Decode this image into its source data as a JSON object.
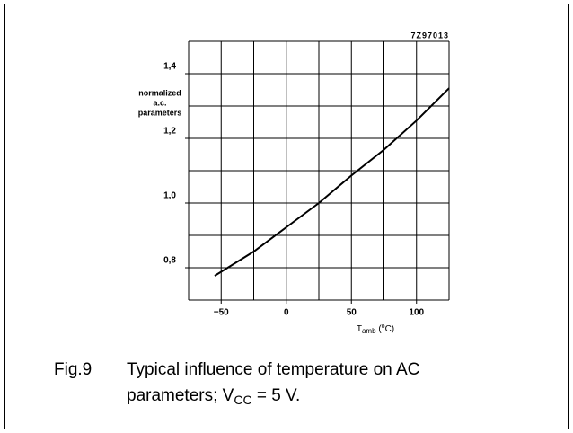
{
  "chart_data": {
    "type": "line",
    "code": "7Z97013",
    "ylabel_lines": [
      "normalized",
      "a.c.",
      "parameters"
    ],
    "xlabel": {
      "main": "T",
      "sub": "amb",
      "open": " (",
      "sup": "o",
      "close": "C)"
    },
    "caption": {
      "fig": "Fig.9",
      "line1": "Typical influence of temperature on AC",
      "line2": "parameters; V",
      "sub": "CC",
      "rest": " = 5 V."
    },
    "x": [
      -55,
      -25,
      0,
      25,
      50,
      75,
      100,
      125
    ],
    "series": [
      {
        "color": "#000000",
        "values": [
          0.775,
          0.85,
          0.925,
          1.0,
          1.085,
          1.165,
          1.255,
          1.355
        ]
      }
    ],
    "xlim": [
      -75,
      125
    ],
    "ylim": [
      0.7,
      1.5
    ],
    "xticks": [
      {
        "value": -50,
        "label": "−50"
      },
      0,
      50,
      100
    ],
    "yticks": [
      {
        "value": 0.8,
        "label": "0,8"
      },
      {
        "value": 1.0,
        "label": "1,0"
      },
      {
        "value": 1.2,
        "label": "1,2"
      },
      {
        "value": 1.4,
        "label": "1,4"
      }
    ],
    "xgrid_step": 25,
    "ygrid_step": 0.1,
    "grid": true
  }
}
